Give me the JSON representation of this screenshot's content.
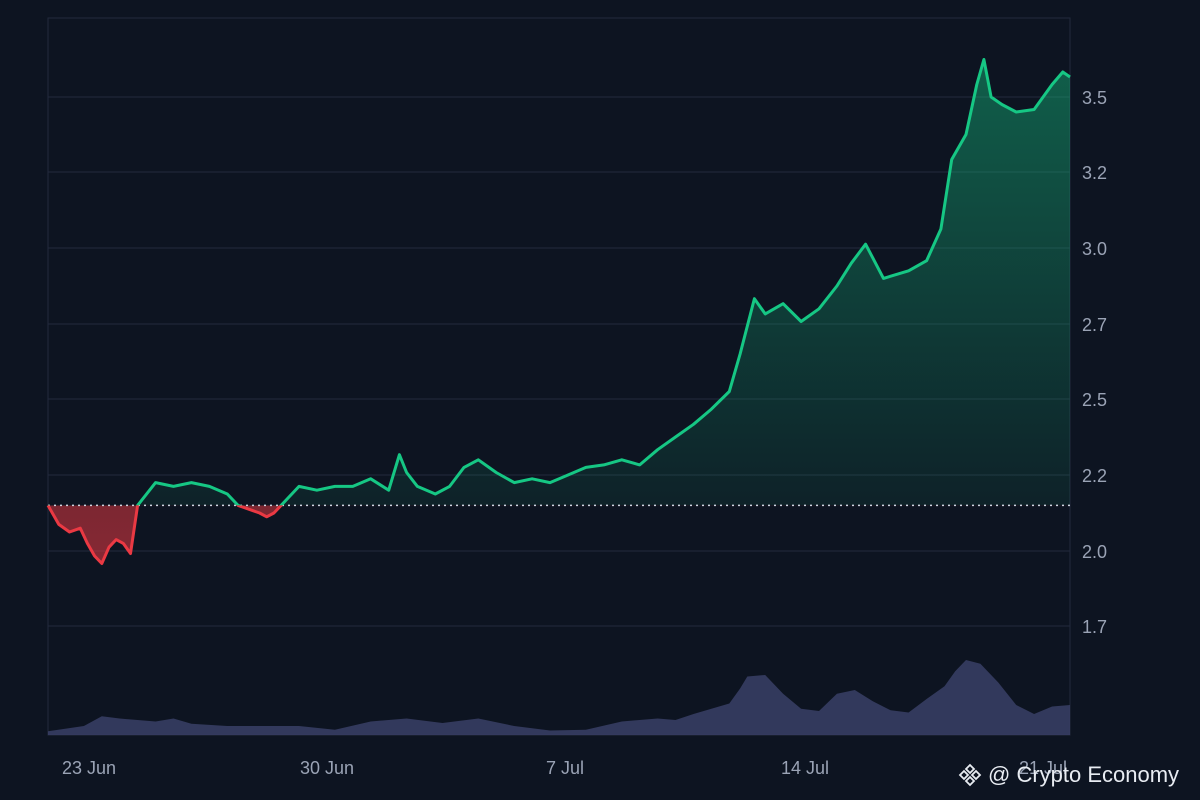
{
  "chart_data": {
    "type": "area",
    "x_ticks": [
      "23 Jun",
      "30 Jun",
      "7 Jul",
      "14 Jul",
      "21 Jul"
    ],
    "y_ticks": [
      "1.7",
      "2.0",
      "2.2",
      "2.5",
      "2.7",
      "3.0",
      "3.2",
      "3.5"
    ],
    "ylim": [
      1.55,
      3.7
    ],
    "xlim_days": [
      0,
      28.5
    ],
    "baseline": 2.12,
    "grid": true,
    "y_axis_position": "right",
    "colors": {
      "up": "#16c784",
      "down": "#ea3943",
      "volume": "#3a3f66",
      "grid": "#222a3d",
      "background": "#0d1421",
      "axis_text": "#9aa3b5"
    },
    "series": [
      {
        "values_day": [
          0,
          0.3,
          0.6,
          0.9,
          1.1,
          1.3,
          1.5,
          1.7,
          1.9,
          2.1,
          2.3,
          2.5,
          3.0,
          3.5,
          4.0,
          4.5,
          5.0,
          5.3,
          5.6,
          5.9,
          6.1,
          6.3,
          6.5,
          7.0,
          7.5,
          8.0,
          8.5,
          9.0,
          9.5,
          9.8,
          10.0,
          10.3,
          10.8,
          11.2,
          11.6,
          12.0,
          12.5,
          13.0,
          13.5,
          14.0,
          14.5,
          15.0,
          15.5,
          16.0,
          16.5,
          17.0,
          17.5,
          18.0,
          18.5,
          19.0,
          19.3,
          19.7,
          20.0,
          20.5,
          21.0,
          21.5,
          22.0,
          22.4,
          22.8,
          23.3,
          24.0,
          24.5,
          24.9,
          25.2,
          25.6,
          25.9,
          26.1,
          26.3,
          26.6,
          27.0,
          27.5,
          28.0,
          28.3,
          28.5
        ],
        "values": [
          2.12,
          2.07,
          2.05,
          2.06,
          2.02,
          1.98,
          1.95,
          2.01,
          2.03,
          2.02,
          1.99,
          2.12,
          2.18,
          2.17,
          2.18,
          2.17,
          2.15,
          2.12,
          2.11,
          2.1,
          2.09,
          2.1,
          2.12,
          2.17,
          2.16,
          2.17,
          2.17,
          2.19,
          2.16,
          2.28,
          2.21,
          2.17,
          2.15,
          2.17,
          2.23,
          2.26,
          2.21,
          2.18,
          2.19,
          2.18,
          2.2,
          2.23,
          2.24,
          2.26,
          2.24,
          2.3,
          2.35,
          2.4,
          2.46,
          2.52,
          2.62,
          2.8,
          2.74,
          2.78,
          2.71,
          2.76,
          2.85,
          2.94,
          3.01,
          2.88,
          2.91,
          2.95,
          3.05,
          3.25,
          3.35,
          3.55,
          3.65,
          3.5,
          3.47,
          3.44,
          3.45,
          3.55,
          3.6,
          3.58
        ]
      }
    ],
    "volume": {
      "values_day": [
        0,
        1,
        1.5,
        2,
        3,
        3.5,
        4,
        5,
        6,
        7,
        8,
        9,
        10,
        11,
        12,
        13,
        14,
        15,
        16,
        17,
        17.5,
        18,
        18.5,
        19,
        19.3,
        19.5,
        20,
        20.5,
        21,
        21.5,
        22,
        22.5,
        23,
        23.5,
        24,
        24.5,
        25,
        25.3,
        25.6,
        26,
        26.5,
        27,
        27.5,
        28,
        28.5
      ],
      "values": [
        0.05,
        0.12,
        0.25,
        0.22,
        0.18,
        0.22,
        0.15,
        0.12,
        0.12,
        0.12,
        0.07,
        0.18,
        0.22,
        0.16,
        0.22,
        0.12,
        0.06,
        0.07,
        0.18,
        0.22,
        0.2,
        0.28,
        0.35,
        0.42,
        0.62,
        0.78,
        0.8,
        0.55,
        0.35,
        0.32,
        0.55,
        0.6,
        0.45,
        0.33,
        0.3,
        0.48,
        0.65,
        0.85,
        1.0,
        0.95,
        0.7,
        0.4,
        0.28,
        0.38,
        0.4
      ]
    }
  },
  "watermark": {
    "text": "@ Crypto Economy",
    "icon": "binance-diamond-icon"
  }
}
